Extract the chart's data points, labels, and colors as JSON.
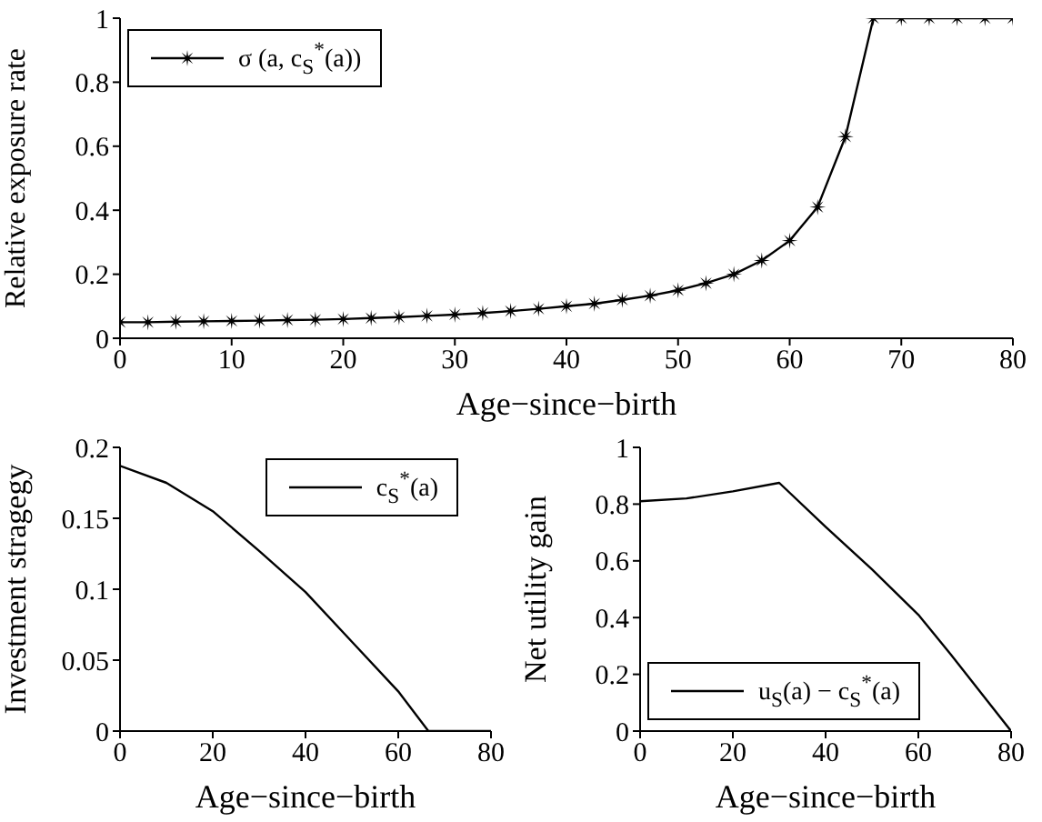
{
  "chart_data": [
    {
      "type": "line",
      "xlabel": "Age−since−birth",
      "ylabel": "Relative exposure rate",
      "x": [
        0,
        2.5,
        5,
        7.5,
        10,
        12.5,
        15,
        17.5,
        20,
        22.5,
        25,
        27.5,
        30,
        32.5,
        35,
        37.5,
        40,
        42.5,
        45,
        47.5,
        50,
        52.5,
        55,
        57.5,
        60,
        62.5,
        65,
        67.5,
        70,
        72.5,
        75,
        77.5,
        80
      ],
      "series": [
        {
          "name": "σ (a, c$_{S}$$^{*}$(a))",
          "color": "#000000",
          "values": [
            0.05,
            0.05,
            0.052,
            0.053,
            0.054,
            0.055,
            0.057,
            0.058,
            0.06,
            0.063,
            0.066,
            0.07,
            0.074,
            0.079,
            0.085,
            0.092,
            0.1,
            0.108,
            0.12,
            0.133,
            0.15,
            0.172,
            0.2,
            0.243,
            0.305,
            0.41,
            0.63,
            1,
            1,
            1,
            1,
            1,
            1
          ]
        }
      ],
      "xlim": [
        0,
        80
      ],
      "xticks": [
        0,
        10,
        20,
        30,
        40,
        50,
        60,
        70,
        80
      ],
      "ylim": [
        0,
        1
      ],
      "yticks": [
        0,
        0.2,
        0.4,
        0.6,
        0.8,
        1
      ],
      "marker": "star",
      "legend": "top left",
      "grid": false
    },
    {
      "type": "line",
      "xlabel": "Age−since−birth",
      "ylabel": "Investment stragegy",
      "x": [
        0,
        10,
        20,
        30,
        40,
        50,
        60,
        66.5,
        80
      ],
      "series": [
        {
          "name": "c$_{S}$$^{*}$(a)",
          "color": "#000000",
          "values": [
            0.187,
            0.175,
            0.155,
            0.127,
            0.098,
            0.063,
            0.028,
            0,
            0
          ]
        }
      ],
      "xlim": [
        0,
        80
      ],
      "xticks": [
        0,
        20,
        40,
        60,
        80
      ],
      "ylim": [
        0,
        0.2
      ],
      "yticks": [
        0,
        0.05,
        0.1,
        0.15,
        0.2
      ],
      "marker": "none",
      "legend": "top right",
      "grid": false
    },
    {
      "type": "line",
      "xlabel": "Age−since−birth",
      "ylabel": "Net utility gain",
      "x": [
        0,
        10,
        20,
        30,
        40,
        50,
        60,
        67,
        80
      ],
      "series": [
        {
          "name": "u$_{S}$(a) − c$_{S}$$^{*}$(a)",
          "color": "#000000",
          "values": [
            0.81,
            0.82,
            0.845,
            0.875,
            0.72,
            0.57,
            0.41,
            0.27,
            0
          ]
        }
      ],
      "xlim": [
        0,
        80
      ],
      "xticks": [
        0,
        20,
        40,
        60,
        80
      ],
      "ylim": [
        0,
        1
      ],
      "yticks": [
        0,
        0.2,
        0.4,
        0.6,
        0.8,
        1
      ],
      "marker": "none",
      "legend": "bottom left",
      "grid": false
    }
  ]
}
